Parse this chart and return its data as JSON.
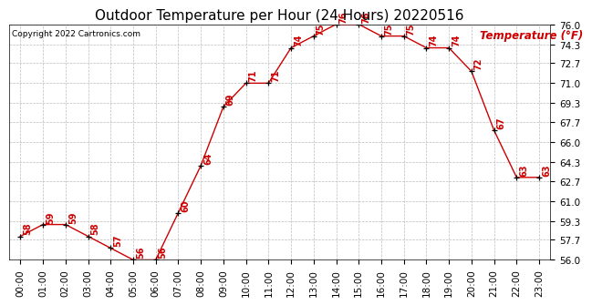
{
  "title": "Outdoor Temperature per Hour (24 Hours) 20220516",
  "copyright": "Copyright 2022 Cartronics.com",
  "legend_label": "Temperature (°F)",
  "hours": [
    "00:00",
    "01:00",
    "02:00",
    "03:00",
    "04:00",
    "05:00",
    "06:00",
    "07:00",
    "08:00",
    "09:00",
    "10:00",
    "11:00",
    "12:00",
    "13:00",
    "14:00",
    "15:00",
    "16:00",
    "17:00",
    "18:00",
    "19:00",
    "20:00",
    "21:00",
    "22:00",
    "23:00"
  ],
  "temps": [
    58,
    59,
    59,
    58,
    57,
    56,
    56,
    60,
    64,
    69,
    71,
    71,
    74,
    75,
    76,
    76,
    75,
    75,
    74,
    74,
    72,
    67,
    63,
    63
  ],
  "line_color": "#cc0000",
  "marker_color": "#000000",
  "label_color": "#cc0000",
  "grid_color": "#bbbbbb",
  "bg_color": "#ffffff",
  "ylim_min": 56.0,
  "ylim_max": 76.0,
  "yticks": [
    56.0,
    57.7,
    59.3,
    61.0,
    62.7,
    64.3,
    66.0,
    67.7,
    69.3,
    71.0,
    72.7,
    74.3,
    76.0
  ],
  "title_fontsize": 11,
  "copyright_fontsize": 6.5,
  "legend_fontsize": 8.5,
  "label_fontsize": 7,
  "tick_fontsize": 7.5
}
